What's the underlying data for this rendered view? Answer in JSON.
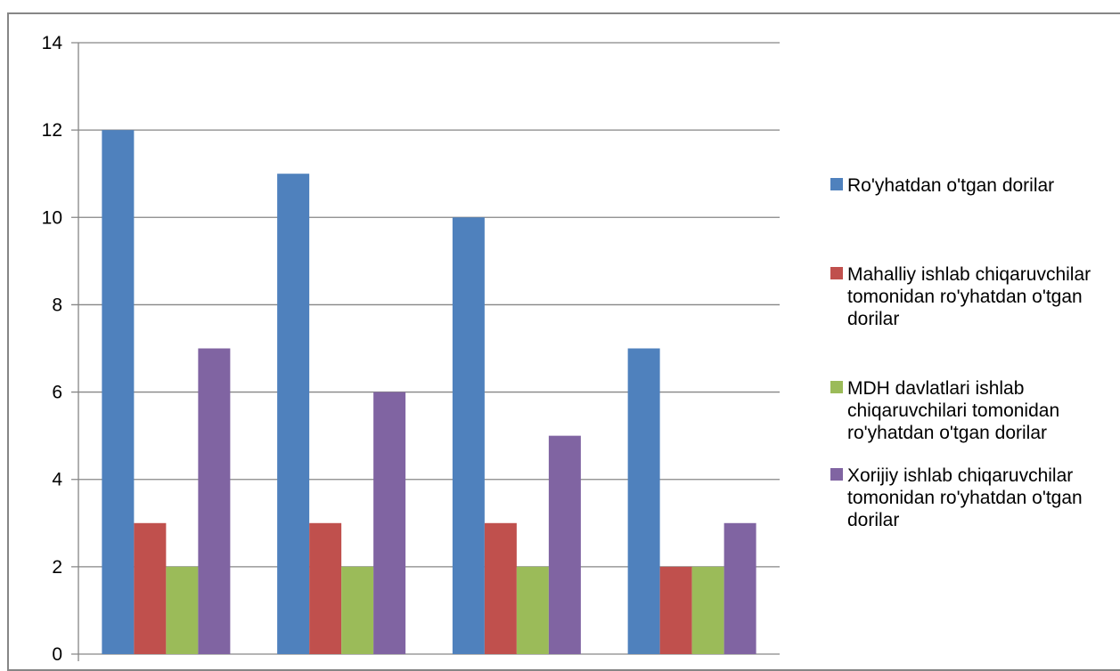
{
  "chart_data": {
    "type": "bar",
    "categories": [
      "",
      "",
      "",
      ""
    ],
    "series": [
      {
        "name": "Ro'yhatdan o'tgan dorilar",
        "legend_lines": [
          "Ro'yhatdan o'tgan dorilar"
        ],
        "color": "#4F81BD",
        "values": [
          12,
          11,
          10,
          7
        ]
      },
      {
        "name": "Mahalliy ishlab chiqaruvchilar tomonidan ro'yhatdan o'tgan dorilar",
        "legend_lines": [
          "Mahalliy ishlab chiqaruvchilar",
          "tomonidan ro'yhatdan o'tgan",
          "dorilar"
        ],
        "color": "#C0504D",
        "values": [
          3,
          3,
          3,
          2
        ]
      },
      {
        "name": "MDH davlatlari ishlab chiqaruvchilari tomonidan ro'yhatdan o'tgan dorilar",
        "legend_lines": [
          "MDH davlatlari ishlab",
          "chiqaruvchilari tomonidan",
          "ro'yhatdan o'tgan dorilar"
        ],
        "color": "#9BBB59",
        "values": [
          2,
          2,
          2,
          2
        ]
      },
      {
        "name": "Xorijiy ishlab chiqaruvchilar tomonidan ro'yhatdan o'tgan dorilar",
        "legend_lines": [
          "Xorijiy ishlab chiqaruvchilar",
          "tomonidan ro'yhatdan o'tgan",
          "dorilar"
        ],
        "color": "#8064A2",
        "values": [
          7,
          6,
          5,
          3
        ]
      }
    ],
    "yticks": [
      "0",
      "2",
      "4",
      "6",
      "8",
      "10",
      "12",
      "14"
    ],
    "ylim": [
      0,
      14
    ],
    "grid": true,
    "legend_position": "right",
    "title": "",
    "xlabel": "",
    "ylabel": ""
  }
}
